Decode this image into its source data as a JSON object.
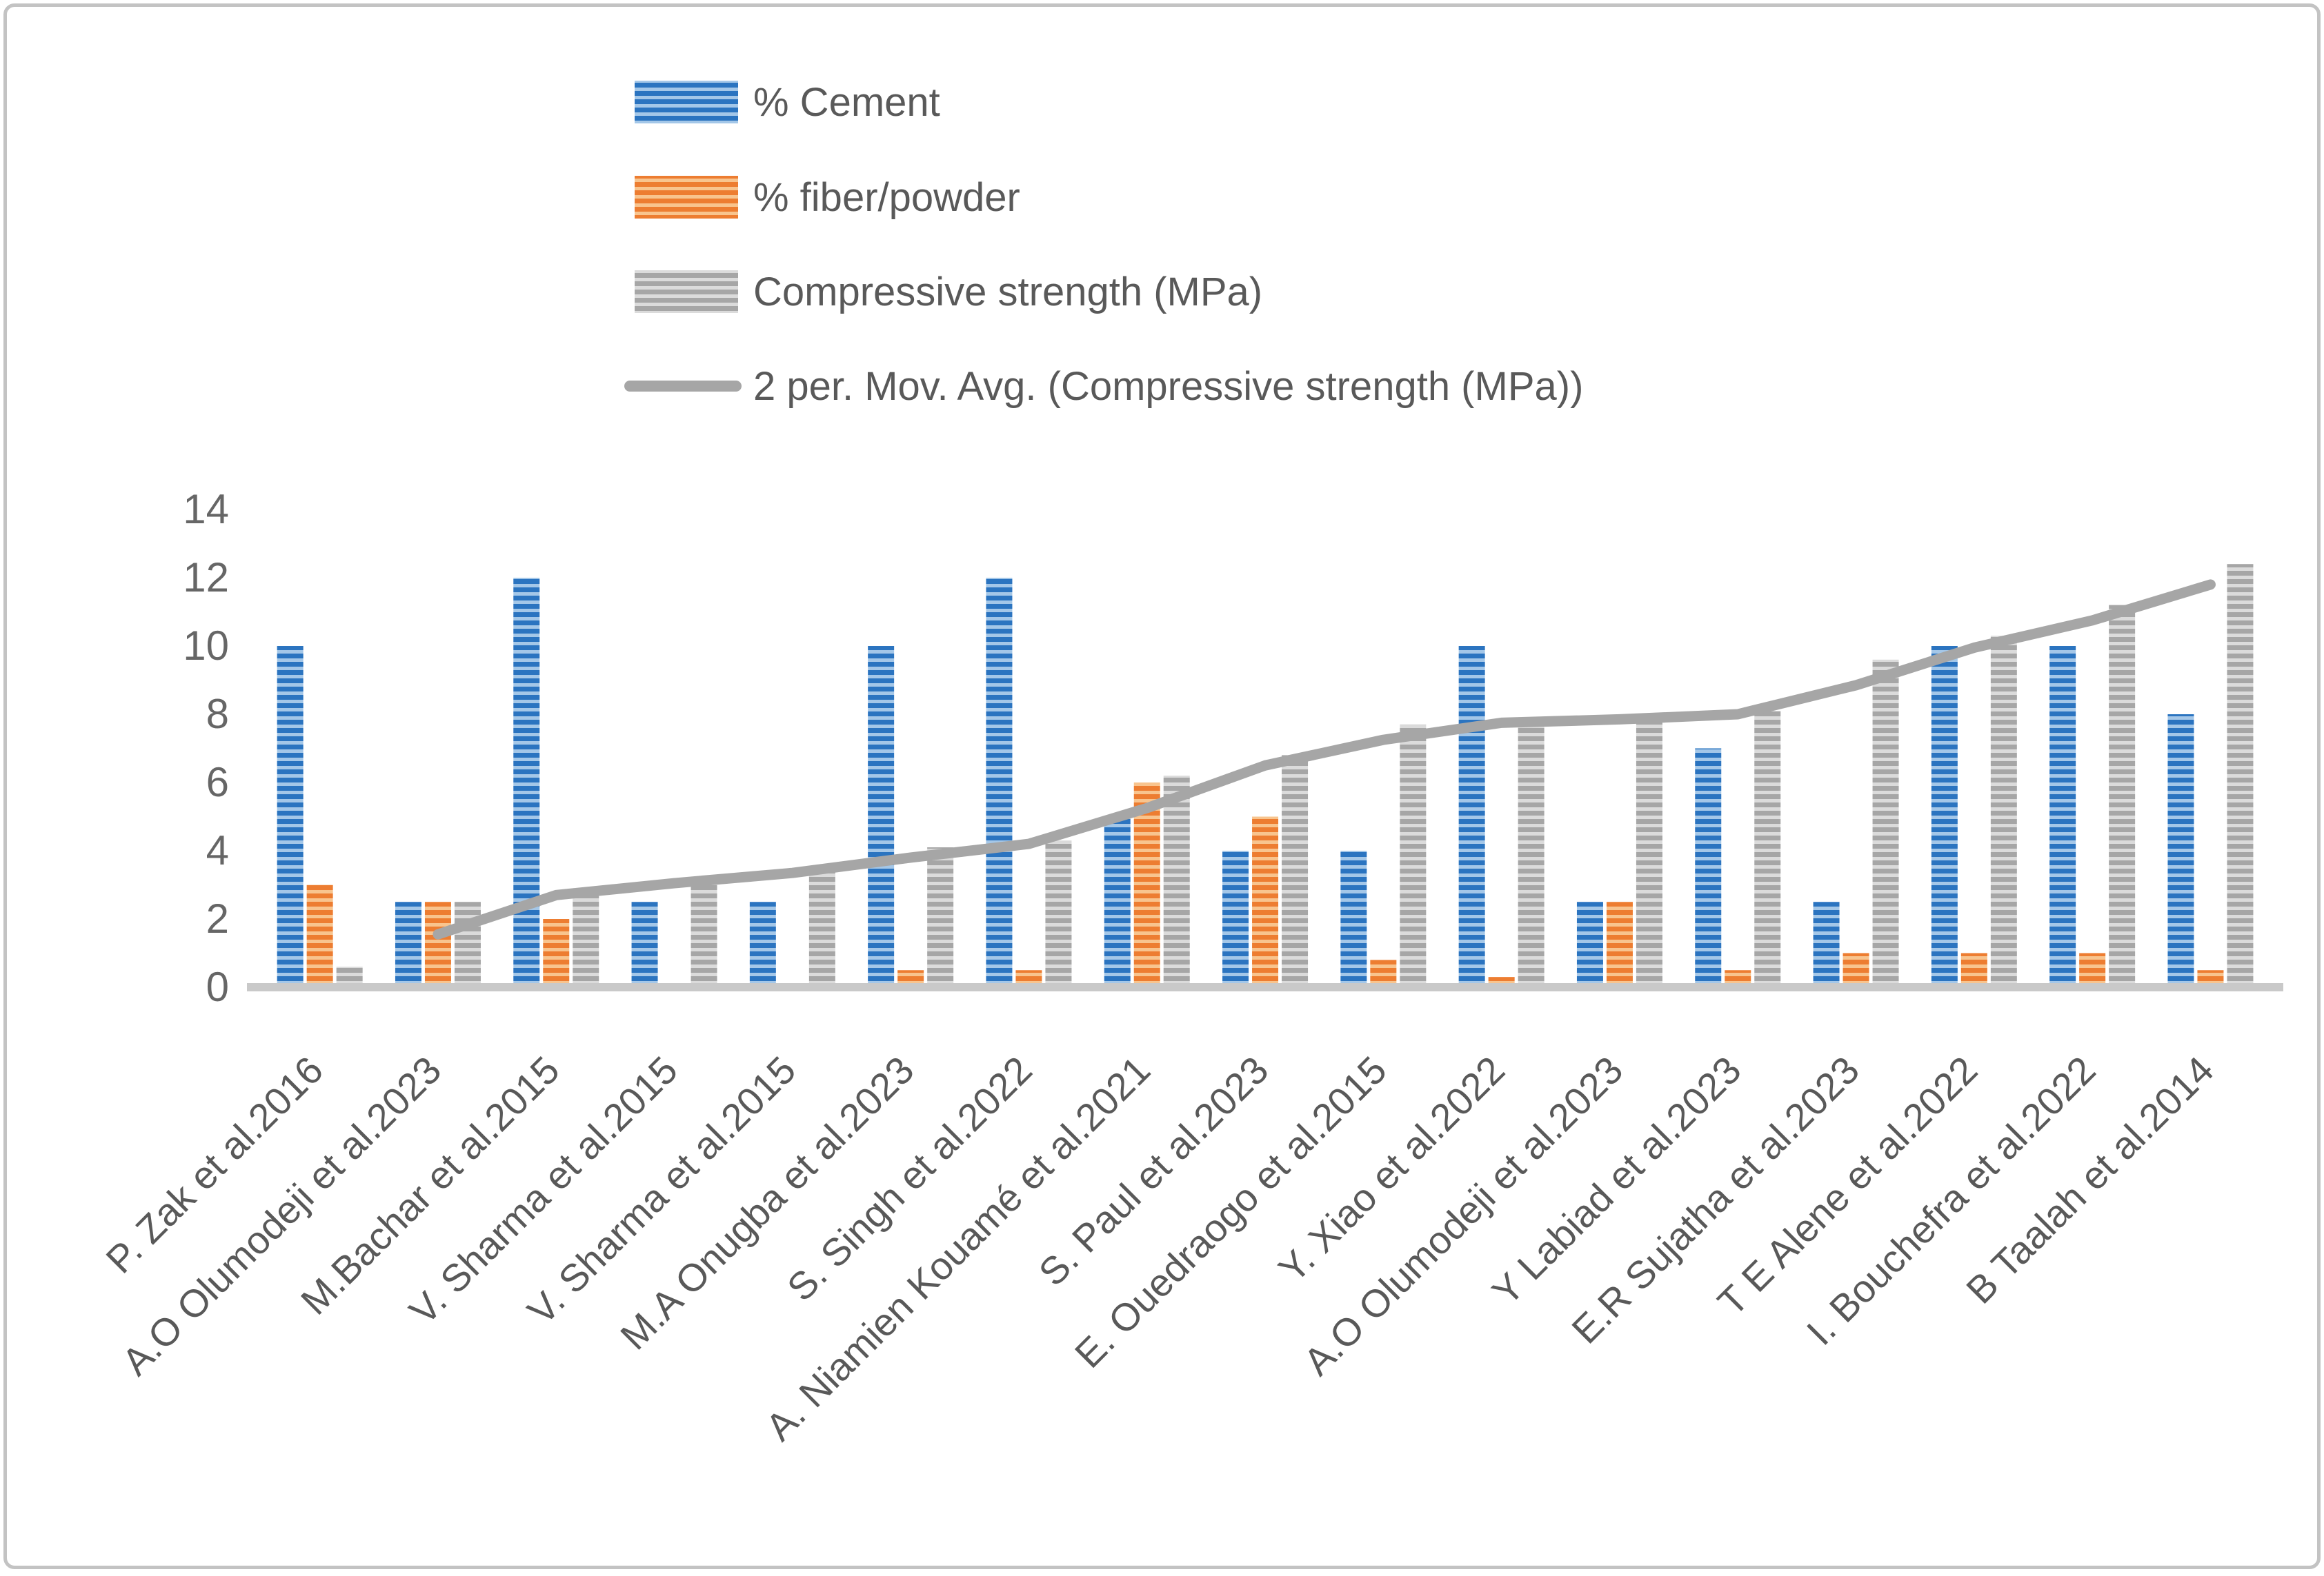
{
  "chart_data": {
    "type": "bar",
    "title": "",
    "xlabel": "",
    "ylabel": "",
    "ylim": [
      0,
      14
    ],
    "y_ticks": [
      0,
      2,
      4,
      6,
      8,
      10,
      12,
      14
    ],
    "grid": false,
    "legend_position": "top-center",
    "categories": [
      "P. Zak et al.2016",
      "A.O Olumodeji et al.2023",
      "M.Bachar et al.2015",
      "V. Sharma et al.2015",
      "V. Sharma et al.2015",
      "M.A Onugba et al.2023",
      "S. Singh et al.2022",
      "A. Niamien Kouamé et al.2021",
      "S. Paul et al.2023",
      "E. Ouedraogo et al.2015",
      "Y. Xiao et al.2022",
      "A.O Olumodeji et al.2023",
      "Y Labiad et al.2023",
      "E.R Sujatha et al.2023",
      "T E Alene et al.2022",
      "I. Bouchefra et al.2022",
      "B Taalah et al.2014"
    ],
    "series": [
      {
        "name": "% Cement",
        "kind": "bar",
        "color_dark": "#2b74c0",
        "color_light": "#a4c7e8",
        "values": [
          10,
          2.5,
          12,
          2.5,
          2.5,
          10,
          12,
          5,
          4,
          4,
          10,
          2.5,
          7,
          2.5,
          10,
          10,
          8
        ]
      },
      {
        "name": "% fiber/powder",
        "kind": "bar",
        "color_dark": "#ed7d31",
        "color_light": "#f8c48e",
        "values": [
          3,
          2.5,
          2,
          0,
          0,
          0.5,
          0.5,
          6,
          5,
          0.8,
          0.3,
          2.5,
          0.5,
          1,
          1,
          1,
          0.5
        ]
      },
      {
        "name": "Compressive strength (MPa)",
        "kind": "bar",
        "color_dark": "#a6a6a6",
        "color_light": "#dbdbdb",
        "values": [
          0.6,
          2.5,
          2.9,
          3.2,
          3.5,
          4.1,
          4.3,
          6.2,
          6.8,
          7.7,
          7.8,
          7.9,
          8.1,
          9.6,
          10.3,
          11.2,
          12.4
        ]
      },
      {
        "name": "2 per. Mov. Avg. (Compressive strength (MPa))",
        "kind": "line",
        "color": "#a6a6a6",
        "values": [
          null,
          1.55,
          2.7,
          3.05,
          3.35,
          3.8,
          4.2,
          5.25,
          6.5,
          7.25,
          7.75,
          7.85,
          8.0,
          8.85,
          9.95,
          10.75,
          11.8
        ]
      }
    ],
    "colors": {
      "axis_line": "#c9c9c9",
      "tick_label": "#666666",
      "category_label": "#595959",
      "legend_text": "#595959",
      "frame_border": "#c3c3c3"
    }
  }
}
